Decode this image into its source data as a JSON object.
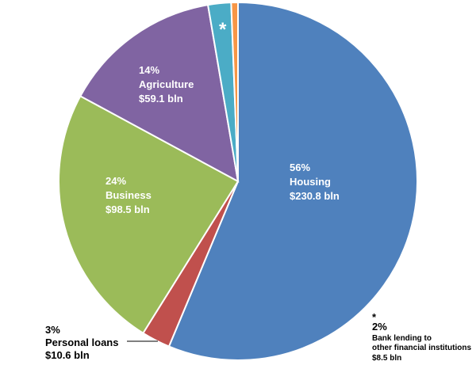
{
  "chart_data": {
    "type": "pie",
    "slices": [
      {
        "key": "housing",
        "pct_label": "56%",
        "name": "Housing",
        "value_label": "$230.8 bln",
        "value": 230.8,
        "color": "#4F81BD"
      },
      {
        "key": "personal",
        "pct_label": "3%",
        "name": "Personal loans",
        "value_label": "$10.6 bln",
        "value": 10.6,
        "color": "#C0504D"
      },
      {
        "key": "business",
        "pct_label": "24%",
        "name": "Business",
        "value_label": "$98.5 bln",
        "value": 98.5,
        "color": "#9BBB59"
      },
      {
        "key": "agriculture",
        "pct_label": "14%",
        "name": "Agriculture",
        "value_label": "$59.1 bln",
        "value": 59.1,
        "color": "#8064A2"
      },
      {
        "key": "bank",
        "marker": "*",
        "pct_label": "2%",
        "name": "Bank lending to other financial institutions",
        "value_label": "$8.5 bln",
        "value": 8.5,
        "color": "#4BACC6"
      },
      {
        "key": "other",
        "value": 2.5,
        "color": "#F79646"
      }
    ]
  },
  "labels": {
    "housing": {
      "pct": "56%",
      "name": "Housing",
      "value": "$230.8 bln"
    },
    "business": {
      "pct": "24%",
      "name": "Business",
      "value": "$98.5 bln"
    },
    "agriculture": {
      "pct": "14%",
      "name": "Agriculture",
      "value": "$59.1 bln"
    },
    "personal": {
      "pct": "3%",
      "name": "Personal loans",
      "value": "$10.6 bln"
    },
    "bank": {
      "marker": "*",
      "pct": "2%",
      "name_line1": "Bank lending to",
      "name_line2": "other financial institutions",
      "value": "$8.5 bln"
    },
    "star_marker": "*"
  }
}
